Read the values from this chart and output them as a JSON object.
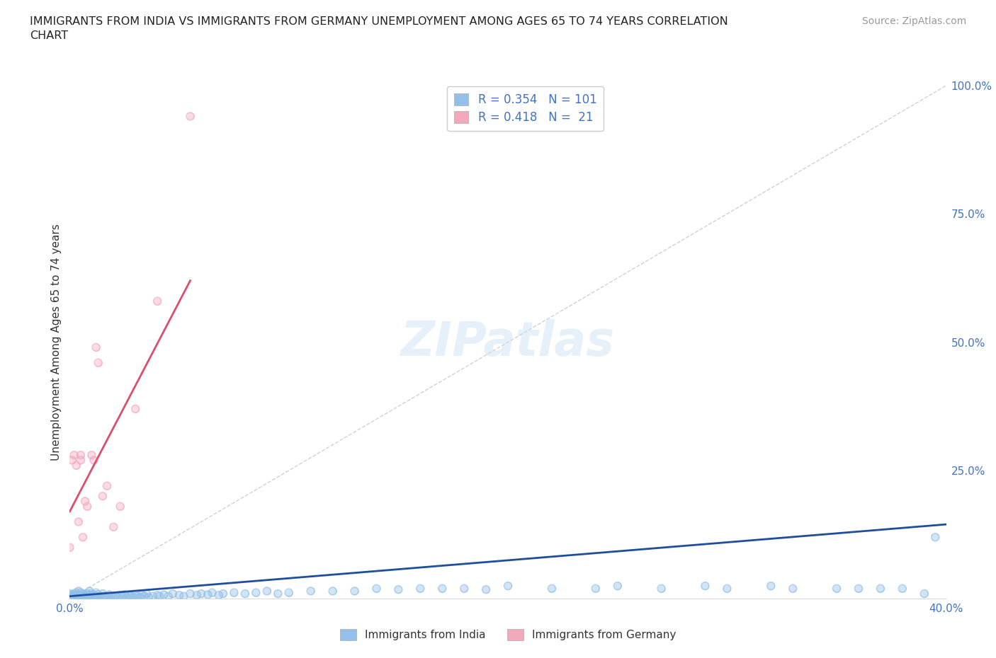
{
  "title": "IMMIGRANTS FROM INDIA VS IMMIGRANTS FROM GERMANY UNEMPLOYMENT AMONG AGES 65 TO 74 YEARS CORRELATION\nCHART",
  "source": "Source: ZipAtlas.com",
  "ylabel": "Unemployment Among Ages 65 to 74 years",
  "india_color": "#92c0e8",
  "germany_color": "#f4a8bc",
  "india_R": 0.354,
  "india_N": 101,
  "germany_R": 0.418,
  "germany_N": 21,
  "legend_color": "#4472c4",
  "india_line_color": "#1f4e9e",
  "germany_line_color": "#d94f6e",
  "diagonal_color": "#cccccc",
  "background_color": "#ffffff",
  "xlim": [
    0.0,
    0.4
  ],
  "ylim": [
    0.0,
    1.0
  ],
  "india_line_x": [
    0.0,
    0.4
  ],
  "india_line_y": [
    0.005,
    0.145
  ],
  "germany_line_x": [
    0.0,
    0.055
  ],
  "germany_line_y": [
    0.17,
    0.62
  ],
  "india_scatter_x": [
    0.0,
    0.0,
    0.001,
    0.001,
    0.002,
    0.002,
    0.003,
    0.003,
    0.003,
    0.004,
    0.004,
    0.004,
    0.005,
    0.005,
    0.005,
    0.006,
    0.006,
    0.007,
    0.007,
    0.008,
    0.008,
    0.009,
    0.009,
    0.009,
    0.01,
    0.01,
    0.011,
    0.011,
    0.012,
    0.012,
    0.013,
    0.013,
    0.014,
    0.015,
    0.015,
    0.016,
    0.017,
    0.018,
    0.019,
    0.02,
    0.021,
    0.022,
    0.023,
    0.024,
    0.025,
    0.026,
    0.027,
    0.028,
    0.029,
    0.03,
    0.031,
    0.032,
    0.033,
    0.034,
    0.035,
    0.036,
    0.038,
    0.04,
    0.041,
    0.043,
    0.045,
    0.047,
    0.05,
    0.052,
    0.055,
    0.058,
    0.06,
    0.063,
    0.065,
    0.068,
    0.07,
    0.075,
    0.08,
    0.085,
    0.09,
    0.095,
    0.1,
    0.11,
    0.12,
    0.13,
    0.14,
    0.15,
    0.16,
    0.17,
    0.18,
    0.19,
    0.2,
    0.22,
    0.24,
    0.25,
    0.27,
    0.29,
    0.3,
    0.32,
    0.33,
    0.35,
    0.36,
    0.37,
    0.38,
    0.39,
    0.395
  ],
  "india_scatter_y": [
    0.005,
    0.01,
    0.003,
    0.008,
    0.005,
    0.01,
    0.003,
    0.007,
    0.012,
    0.005,
    0.008,
    0.015,
    0.003,
    0.007,
    0.012,
    0.005,
    0.01,
    0.003,
    0.008,
    0.005,
    0.01,
    0.003,
    0.007,
    0.015,
    0.005,
    0.01,
    0.003,
    0.008,
    0.005,
    0.012,
    0.003,
    0.008,
    0.005,
    0.003,
    0.01,
    0.005,
    0.003,
    0.008,
    0.005,
    0.003,
    0.005,
    0.003,
    0.007,
    0.005,
    0.008,
    0.003,
    0.006,
    0.005,
    0.003,
    0.007,
    0.005,
    0.003,
    0.008,
    0.005,
    0.01,
    0.003,
    0.005,
    0.007,
    0.005,
    0.008,
    0.005,
    0.01,
    0.007,
    0.005,
    0.01,
    0.007,
    0.01,
    0.008,
    0.012,
    0.007,
    0.01,
    0.012,
    0.01,
    0.012,
    0.015,
    0.01,
    0.012,
    0.015,
    0.015,
    0.015,
    0.02,
    0.018,
    0.02,
    0.02,
    0.02,
    0.018,
    0.025,
    0.02,
    0.02,
    0.025,
    0.02,
    0.025,
    0.02,
    0.025,
    0.02,
    0.02,
    0.02,
    0.02,
    0.02,
    0.01,
    0.12
  ],
  "germany_scatter_x": [
    0.0,
    0.001,
    0.002,
    0.003,
    0.004,
    0.005,
    0.005,
    0.006,
    0.007,
    0.008,
    0.01,
    0.011,
    0.012,
    0.013,
    0.015,
    0.017,
    0.02,
    0.023,
    0.03,
    0.04,
    0.055
  ],
  "germany_scatter_y": [
    0.1,
    0.27,
    0.28,
    0.26,
    0.15,
    0.28,
    0.27,
    0.12,
    0.19,
    0.18,
    0.28,
    0.27,
    0.49,
    0.46,
    0.2,
    0.22,
    0.14,
    0.18,
    0.37,
    0.58,
    0.94
  ]
}
